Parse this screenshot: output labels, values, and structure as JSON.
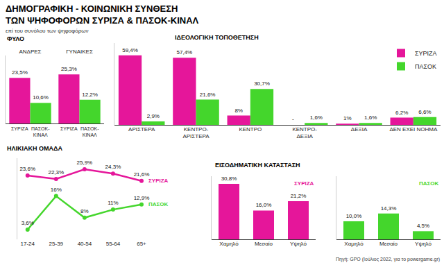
{
  "title": [
    "ΔΗΜΟΓΡΑΦΙΚΗ - ΚΟΙΝΩΝΙΚΗ ΣΥΝΘΕΣΗ",
    "ΤΩΝ ΨΗΦΟΦΟΡΩΝ ΣΥΡΙΖΑ & ΠΑΣΟΚ-ΚΙΝΑΛ"
  ],
  "subtitle": "επί του συνόλου των ψηφοφόρων",
  "source": "Πηγή: GPO (Ιούλιος 2022, για το powergame.gr)",
  "chart_data": [
    {
      "type": "bar",
      "title": "ΦΥΛΟ",
      "categories": [
        "ΑΝΔΡΕΣ",
        "ΓΥΝΑΙΚΕΣ"
      ],
      "series": [
        {
          "name": "ΣΥΡΙΖΑ",
          "color": "#e5169a",
          "values": [
            23.5,
            25.3
          ],
          "value_labels": [
            "23,5%",
            "25,3%"
          ]
        },
        {
          "name": "ΠΑΣΟΚ-ΚΙΝΑΛ",
          "color": "#44d62c",
          "values": [
            10.6,
            12.2
          ],
          "value_labels": [
            "10,6%",
            "12,2%"
          ]
        }
      ],
      "ylim": [
        0,
        35
      ],
      "grid": false,
      "data_labels": true,
      "tick_labels": "x"
    },
    {
      "type": "bar",
      "title": "ΙΔΕΟΛΟΓΙΚΗ ΤΟΠΟΘΕΤΗΣΗ",
      "categories": [
        "ΑΡΙΣΤΕΡΑ",
        "ΚΕΝΤΡΟ-ΑΡΙΣΤΕΡΑ",
        "ΚΕΝΤΡΟ",
        "ΚΕΝΤΡΟ-ΔΕΞΙΑ",
        "ΔΕΞΙΑ",
        "ΔΕΝ ΕΧΕΙ ΝΟΗΜΑ"
      ],
      "series": [
        {
          "name": "ΣΥΡΙΖΑ",
          "color": "#e5169a",
          "values": [
            59.4,
            57.4,
            8,
            null,
            1,
            6.2
          ],
          "value_labels": [
            "59,4%",
            "57,4%",
            "8%",
            "-",
            "1%",
            "6,2%"
          ]
        },
        {
          "name": "ΠΑΣΟΚ",
          "color": "#44d62c",
          "values": [
            2.9,
            21.6,
            30.7,
            1.6,
            1.6,
            6.6
          ],
          "value_labels": [
            "2,9%",
            "21,6%",
            "30,7%",
            "1,6%",
            "1,6%",
            "6,6%"
          ]
        }
      ],
      "ylim": [
        0,
        70
      ],
      "grid": false,
      "data_labels": true,
      "tick_labels": "x",
      "legend": "top right"
    },
    {
      "type": "line",
      "title": "ΗΛΙΚΙΑΚΗ ΟΜΑΔΑ",
      "categories": [
        "17-24",
        "25-39",
        "40-54",
        "55-64",
        "65+"
      ],
      "series": [
        {
          "name": "ΣΥΡΙΖΑ",
          "color": "#e5169a",
          "values": [
            23.6,
            22.3,
            25.9,
            24.3,
            21.6
          ],
          "value_labels": [
            "23,6%",
            "22,3%",
            "25,9%",
            "24,3%",
            "21,6%"
          ]
        },
        {
          "name": "ΠΑΣΟΚ",
          "color": "#44d62c",
          "values": [
            3.6,
            16,
            8,
            11,
            12.9
          ],
          "value_labels": [
            "3,6%",
            "16%",
            "8%",
            "11%",
            "12,9%"
          ]
        }
      ],
      "ylim": [
        0,
        30
      ],
      "grid": false,
      "data_labels": true,
      "tick_labels": "x",
      "marker": "circle"
    },
    {
      "type": "bar",
      "title": "ΕΙΣΟΔΗΜΑΤΙΚΗ ΚΑΤΑΣΤΑΣΗ",
      "categories": [
        "Χαμηλό",
        "Μεσαίο",
        "Υψηλό"
      ],
      "series": [
        {
          "name": "ΣΥΡΙΖΑ",
          "color": "#e5169a",
          "values": [
            30.8,
            16.0,
            21.2
          ],
          "value_labels": [
            "30,8%",
            "16,0%",
            "21,2%"
          ]
        },
        {
          "name": "ΠΑΣΟΚ",
          "color": "#44d62c",
          "values": [
            10.0,
            14.3,
            4.5
          ],
          "value_labels": [
            "10,0%",
            "14,3%",
            "4,5%"
          ]
        }
      ],
      "ylim": [
        0,
        35
      ],
      "grid": false,
      "data_labels": true,
      "tick_labels": "x"
    }
  ]
}
